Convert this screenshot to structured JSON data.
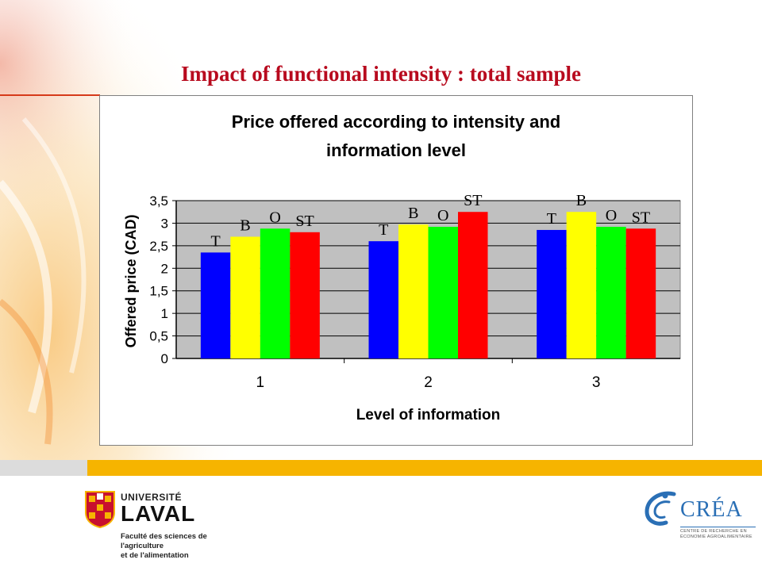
{
  "slide": {
    "title": "Impact of functional intensity : total sample"
  },
  "colors": {
    "title": "#b80a1e",
    "plot_background": "#c0c0c0",
    "band_yellow": "#f6b400",
    "band_gray": "#dcdcdc"
  },
  "chart_data": {
    "type": "bar",
    "title": "Price offered according to intensity and information level",
    "title_lines": [
      "Price offered according to intensity and",
      "information level"
    ],
    "xlabel": "Level of information",
    "ylabel": "Offered price (CAD)",
    "categories": [
      "1",
      "2",
      "3"
    ],
    "ylim": [
      0,
      3.5
    ],
    "yticks": [
      "0",
      "0,5",
      "1",
      "1,5",
      "2",
      "2,5",
      "3",
      "3,5"
    ],
    "grid": true,
    "legend": "none",
    "series": [
      {
        "label": "T",
        "color": "#0000ff",
        "values": [
          2.35,
          2.6,
          2.85
        ]
      },
      {
        "label": "B",
        "color": "#ffff00",
        "values": [
          2.7,
          2.97,
          3.25
        ]
      },
      {
        "label": "O",
        "color": "#00ff00",
        "values": [
          2.88,
          2.92,
          2.92
        ]
      },
      {
        "label": "ST",
        "color": "#ff0000",
        "values": [
          2.8,
          3.25,
          2.88
        ]
      }
    ]
  },
  "logos": {
    "university_top": "UNIVERSITÉ",
    "university_name": "LAVAL",
    "faculty_line1": "Faculté des sciences de l'agriculture",
    "faculty_line2": "et de l'alimentation",
    "crea_name": "CRÉA",
    "crea_sub_line1": "CENTRE DE RECHERCHE EN",
    "crea_sub_line2": "ÉCONOMIE AGROALIMENTAIRE"
  }
}
